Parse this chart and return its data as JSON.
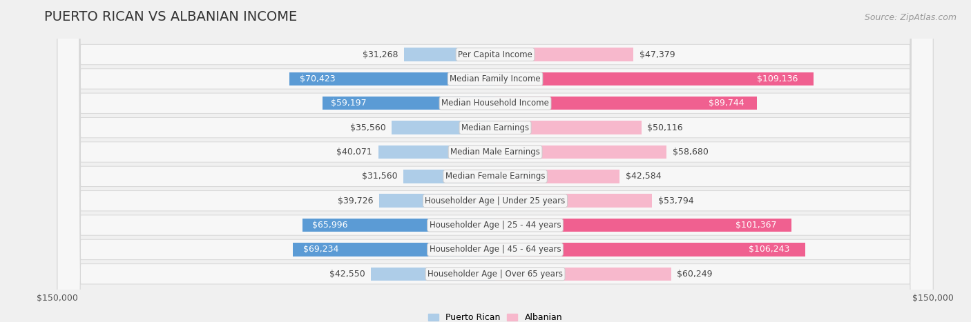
{
  "title": "PUERTO RICAN VS ALBANIAN INCOME",
  "source": "Source: ZipAtlas.com",
  "categories": [
    "Per Capita Income",
    "Median Family Income",
    "Median Household Income",
    "Median Earnings",
    "Median Male Earnings",
    "Median Female Earnings",
    "Householder Age | Under 25 years",
    "Householder Age | 25 - 44 years",
    "Householder Age | 45 - 64 years",
    "Householder Age | Over 65 years"
  ],
  "puerto_rican": [
    31268,
    70423,
    59197,
    35560,
    40071,
    31560,
    39726,
    65996,
    69234,
    42550
  ],
  "albanian": [
    47379,
    109136,
    89744,
    50116,
    58680,
    42584,
    53794,
    101367,
    106243,
    60249
  ],
  "max_val": 150000,
  "bar_color_pr_dark": "#5b9bd5",
  "bar_color_pr_light": "#aecde8",
  "bar_color_al_dark": "#f06090",
  "bar_color_al_light": "#f7b8cc",
  "dark_threshold_pr": 55000,
  "dark_threshold_al": 75000,
  "label_color_dark": "#444444",
  "label_color_white": "#ffffff",
  "bg_color": "#f0f0f0",
  "row_bg": "#f7f7f7",
  "row_border": "#d8d8d8",
  "center_label_bg": "#f5f5f5",
  "center_label_border": "#cccccc",
  "title_fontsize": 14,
  "source_fontsize": 9,
  "bar_label_fontsize": 9,
  "category_fontsize": 8.5,
  "legend_fontsize": 9,
  "axis_label_fontsize": 9
}
